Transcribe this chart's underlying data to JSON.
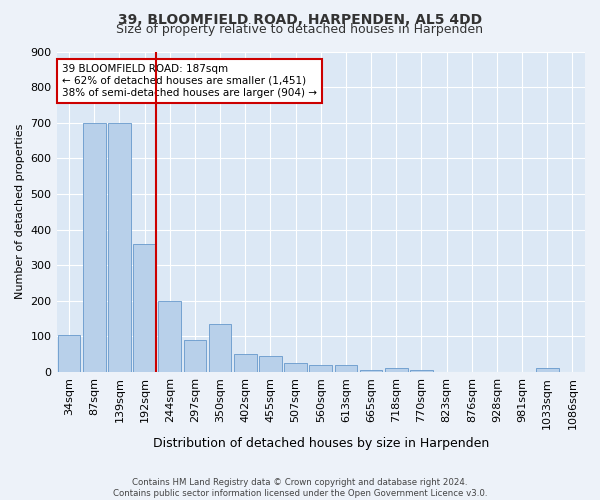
{
  "title": "39, BLOOMFIELD ROAD, HARPENDEN, AL5 4DD",
  "subtitle": "Size of property relative to detached houses in Harpenden",
  "xlabel": "Distribution of detached houses by size in Harpenden",
  "ylabel": "Number of detached properties",
  "categories": [
    "34sqm",
    "87sqm",
    "139sqm",
    "192sqm",
    "244sqm",
    "297sqm",
    "350sqm",
    "402sqm",
    "455sqm",
    "507sqm",
    "560sqm",
    "613sqm",
    "665sqm",
    "718sqm",
    "770sqm",
    "823sqm",
    "876sqm",
    "928sqm",
    "981sqm",
    "1033sqm",
    "1086sqm"
  ],
  "values": [
    105,
    700,
    700,
    360,
    200,
    90,
    135,
    50,
    45,
    25,
    20,
    20,
    5,
    10,
    5,
    0,
    0,
    0,
    0,
    10,
    0
  ],
  "bar_color": "#b8d0ea",
  "bar_edge_color": "#6699cc",
  "vline_color": "#cc0000",
  "vline_x_index": 3,
  "annotation_text": "39 BLOOMFIELD ROAD: 187sqm\n← 62% of detached houses are smaller (1,451)\n38% of semi-detached houses are larger (904) →",
  "annotation_box_color": "#ffffff",
  "annotation_box_edge_color": "#cc0000",
  "ylim": [
    0,
    900
  ],
  "yticks": [
    0,
    100,
    200,
    300,
    400,
    500,
    600,
    700,
    800,
    900
  ],
  "footer": "Contains HM Land Registry data © Crown copyright and database right 2024.\nContains public sector information licensed under the Open Government Licence v3.0.",
  "background_color": "#edf2f9",
  "plot_background": "#dce8f5",
  "title_fontsize": 10,
  "subtitle_fontsize": 9,
  "ylabel_fontsize": 8,
  "xlabel_fontsize": 9,
  "tick_fontsize": 8,
  "annotation_fontsize": 7.5
}
